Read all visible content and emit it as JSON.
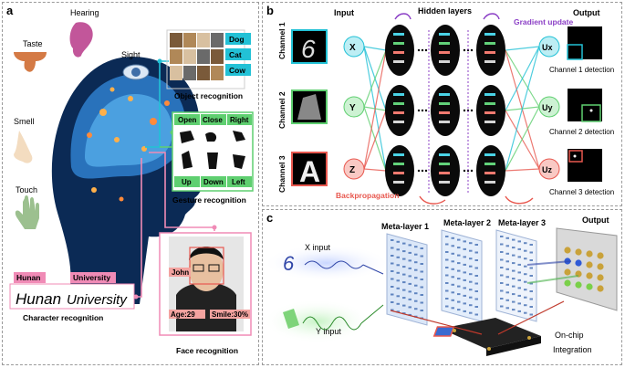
{
  "panel_a": {
    "letter": "a",
    "senses": {
      "taste": "Taste",
      "hearing": "Hearing",
      "sight": "Sight",
      "smell": "Smell",
      "touch": "Touch"
    },
    "objects": {
      "labels": [
        "Dog",
        "Cat",
        "Cow"
      ],
      "title": "Object recognition"
    },
    "gestures": {
      "labels": [
        "Open",
        "Close",
        "Right",
        "Up",
        "Down",
        "Left"
      ],
      "title": "Gesture recognition"
    },
    "characters": {
      "words": [
        "Hunan",
        "University"
      ],
      "title": "Character recognition"
    },
    "face": {
      "name": "John",
      "age": "Age:29",
      "smile": "Smile:30%",
      "title": "Face recognition"
    },
    "colors": {
      "cyan": "#22c1d6",
      "green": "#5fcf70",
      "pink": "#f08bb6",
      "red": "#e8584f"
    }
  },
  "panel_b": {
    "letter": "b",
    "input_label": "Input",
    "hidden_label": "Hidden layers",
    "output_label": "Output",
    "gradient_label": "Gradient update",
    "backprop_label": "Backpropagation",
    "channels": [
      "Channel 1",
      "Channel 2",
      "Channel 3"
    ],
    "input_glyphs": [
      "6",
      "",
      "A"
    ],
    "input_nodes": [
      "X",
      "Y",
      "Z"
    ],
    "output_nodes": [
      "Ux",
      "Uy",
      "Uz"
    ],
    "detections": [
      "Channel 1 detection",
      "Channel 2 detection",
      "Channel 3 detection"
    ],
    "colors": {
      "cyan": "#22c1d6",
      "green": "#5fcf70",
      "red": "#e8584f",
      "purple": "#8b3fc6"
    }
  },
  "panel_c": {
    "letter": "c",
    "x_input": "X input",
    "y_input": "Y input",
    "meta_layers": [
      "Meta-layer 1",
      "Meta-layer 2",
      "Meta-layer 3"
    ],
    "output_label": "Output",
    "onchip": "On-chip",
    "integration": "Integration"
  }
}
